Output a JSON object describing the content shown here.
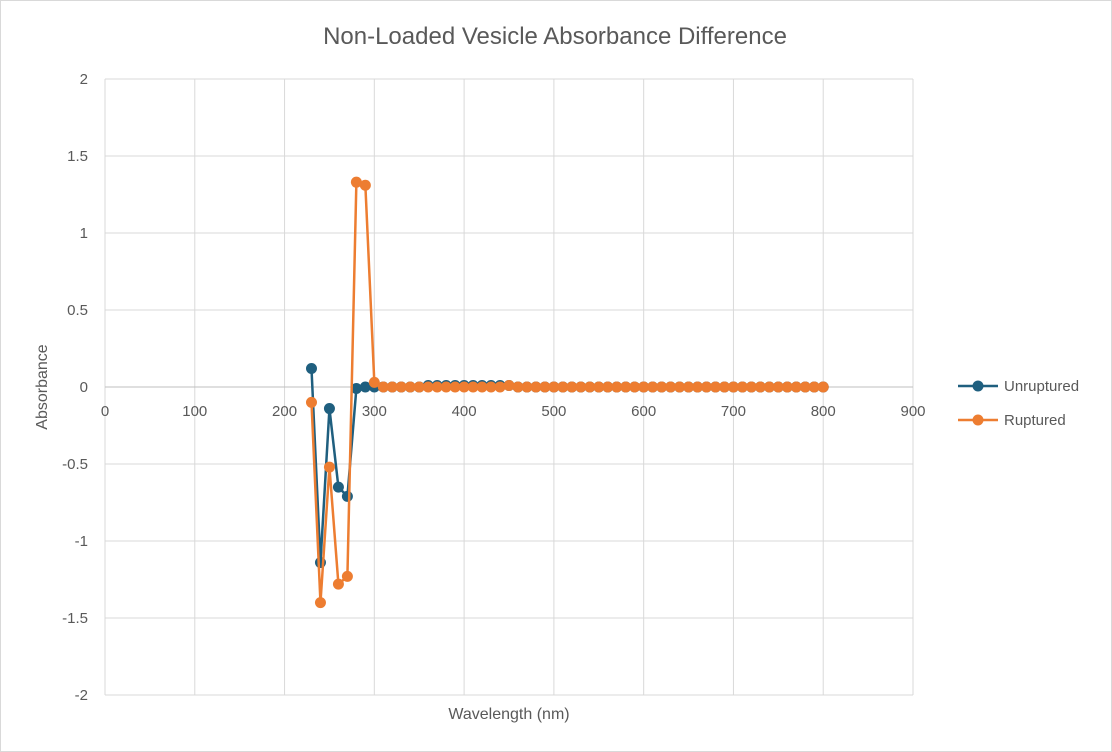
{
  "chart_data": {
    "type": "scatter",
    "title": "Non-Loaded Vesicle Absorbance Difference",
    "xlabel": "Wavelength (nm)",
    "ylabel": "Absorbance",
    "xlim": [
      0,
      900
    ],
    "ylim": [
      -2,
      2
    ],
    "x_ticks": [
      0,
      100,
      200,
      300,
      400,
      500,
      600,
      700,
      800,
      900
    ],
    "y_ticks": [
      2,
      1.5,
      1,
      0.5,
      0,
      -0.5,
      -1,
      -1.5,
      -2
    ],
    "x_tick_labels": [
      "0",
      "100",
      "200",
      "300",
      "400",
      "500",
      "600",
      "700",
      "800",
      "900"
    ],
    "y_tick_labels": [
      "2",
      "1.5",
      "1",
      "0.5",
      "0",
      "-0.5",
      "-1",
      "-1.5",
      "-2"
    ],
    "grid": true,
    "legend_position": "right",
    "line_style": "straight lines with markers",
    "x": [
      230,
      240,
      250,
      260,
      270,
      280,
      290,
      300,
      310,
      320,
      330,
      340,
      350,
      360,
      370,
      380,
      390,
      400,
      410,
      420,
      430,
      440,
      450,
      460,
      470,
      480,
      490,
      500,
      510,
      520,
      530,
      540,
      550,
      560,
      570,
      580,
      590,
      600,
      610,
      620,
      630,
      640,
      650,
      660,
      670,
      680,
      690,
      700,
      710,
      720,
      730,
      740,
      750,
      760,
      770,
      780,
      790,
      800
    ],
    "series": [
      {
        "name": "Unruptured",
        "color": "#1F5F7F",
        "values": [
          0.12,
          -1.14,
          -0.14,
          -0.65,
          -0.71,
          -0.01,
          0.0,
          0.0,
          0.0,
          0.0,
          0.0,
          0.0,
          0.0,
          0.01,
          0.01,
          0.01,
          0.01,
          0.01,
          0.01,
          0.01,
          0.01,
          0.01,
          0.01,
          0.0,
          0.0,
          0.0,
          0.0,
          0.0,
          0.0,
          0.0,
          0.0,
          0.0,
          0.0,
          0.0,
          0.0,
          0.0,
          0.0,
          0.0,
          0.0,
          0.0,
          0.0,
          0.0,
          0.0,
          0.0,
          0.0,
          0.0,
          0.0,
          0.0,
          0.0,
          0.0,
          0.0,
          0.0,
          0.0,
          0.0,
          0.0,
          0.0,
          0.0,
          0.0
        ]
      },
      {
        "name": "Ruptured",
        "color": "#ED7D31",
        "values": [
          -0.1,
          -1.4,
          -0.52,
          -1.28,
          -1.23,
          1.33,
          1.31,
          0.03,
          0.0,
          0.0,
          0.0,
          0.0,
          0.0,
          0.0,
          0.0,
          0.0,
          0.0,
          0.0,
          0.0,
          0.0,
          0.0,
          0.0,
          0.01,
          0.0,
          0.0,
          0.0,
          0.0,
          0.0,
          0.0,
          0.0,
          0.0,
          0.0,
          0.0,
          0.0,
          0.0,
          0.0,
          0.0,
          0.0,
          0.0,
          0.0,
          0.0,
          0.0,
          0.0,
          0.0,
          0.0,
          0.0,
          0.0,
          0.0,
          0.0,
          0.0,
          0.0,
          0.0,
          0.0,
          0.0,
          0.0,
          0.0,
          0.0,
          0.0
        ]
      }
    ]
  },
  "colors": {
    "grid": "#D9D9D9",
    "zero_axis": "#BFBFBF",
    "text": "#595959",
    "frame": "#D9D9D9"
  }
}
